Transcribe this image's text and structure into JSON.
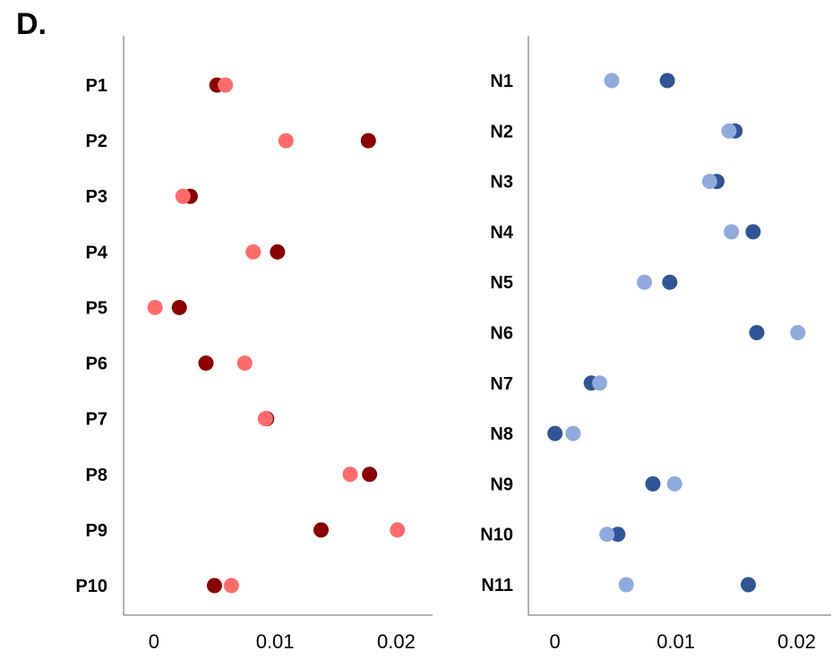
{
  "panel_label": "D.",
  "chart_data": [
    {
      "type": "scatter",
      "title": "",
      "xlabel": "",
      "ylabel": "",
      "xlim": [
        -0.0025,
        0.023
      ],
      "xticks": [
        0,
        0.01,
        0.02
      ],
      "xtick_labels": [
        "0",
        "0.01",
        "0.02"
      ],
      "grid": false,
      "categories": [
        "P1",
        "P2",
        "P3",
        "P4",
        "P5",
        "P6",
        "P7",
        "P8",
        "P9",
        "P10"
      ],
      "series": [
        {
          "color": "#8b0000",
          "values": [
            0.0052,
            0.0177,
            0.003,
            0.0102,
            0.0021,
            0.0043,
            0.0093,
            0.0178,
            0.0138,
            0.005
          ]
        },
        {
          "color": "#ff6b6b",
          "values": [
            0.0059,
            0.0109,
            0.0024,
            0.0082,
            0.0001,
            0.0075,
            0.0092,
            0.0162,
            0.0201,
            0.0064
          ]
        }
      ]
    },
    {
      "type": "scatter",
      "title": "",
      "xlabel": "",
      "ylabel": "",
      "xlim": [
        -0.0022,
        0.023
      ],
      "xticks": [
        0,
        0.01,
        0.02
      ],
      "xtick_labels": [
        "0",
        "0.01",
        "0.02"
      ],
      "grid": false,
      "categories": [
        "N1",
        "N2",
        "N3",
        "N4",
        "N5",
        "N6",
        "N7",
        "N8",
        "N9",
        "N10",
        "N11"
      ],
      "series": [
        {
          "color": "#2f5597",
          "values": [
            0.0093,
            0.0149,
            0.0134,
            0.0164,
            0.0095,
            0.0167,
            0.003,
            0.0,
            0.0081,
            0.0052,
            0.016
          ]
        },
        {
          "color": "#8faadc",
          "values": [
            0.0047,
            0.0144,
            0.0128,
            0.0146,
            0.0074,
            0.0201,
            0.0037,
            0.0015,
            0.0099,
            0.0043,
            0.0059
          ]
        }
      ]
    }
  ]
}
